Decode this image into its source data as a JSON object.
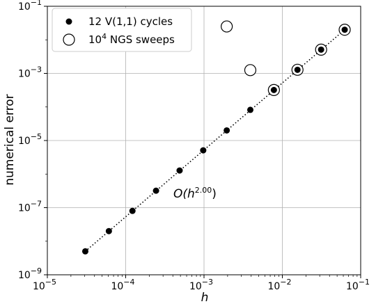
{
  "chart_data": {
    "type": "scatter",
    "xscale": "log",
    "yscale": "log",
    "xlim": [
      1e-05,
      0.1
    ],
    "ylim": [
      1e-09,
      0.1
    ],
    "grid": true,
    "xlabel": "h",
    "ylabel": "numerical error",
    "x_ticks": [
      {
        "base": "10",
        "exp": "−5"
      },
      {
        "base": "10",
        "exp": "−4"
      },
      {
        "base": "10",
        "exp": "−3"
      },
      {
        "base": "10",
        "exp": "−2"
      },
      {
        "base": "10",
        "exp": "−1"
      }
    ],
    "y_ticks": [
      {
        "base": "10",
        "exp": "−9"
      },
      {
        "base": "10",
        "exp": "−7"
      },
      {
        "base": "10",
        "exp": "−5"
      },
      {
        "base": "10",
        "exp": "−3"
      },
      {
        "base": "10",
        "exp": "−1"
      }
    ],
    "legend_position": "upper-left",
    "series": [
      {
        "name": "12 V(1,1) cycles",
        "marker": "filled-circle",
        "color": "#000000",
        "x": [
          3.05e-05,
          6.1e-05,
          0.000122,
          0.000244,
          0.000488,
          0.000977,
          0.00195,
          0.0039,
          0.0078,
          0.0156,
          0.03125,
          0.0625
        ],
        "y": [
          5e-09,
          2e-08,
          8e-08,
          3.2e-07,
          1.28e-06,
          5.1e-06,
          2e-05,
          8.2e-05,
          0.00032,
          0.00128,
          0.0051,
          0.02
        ]
      },
      {
        "name_base": "10",
        "name_exp": "4",
        "name_rest": " NGS sweeps",
        "marker": "open-circle",
        "color": "#000000",
        "x": [
          0.00195,
          0.0039,
          0.0078,
          0.0156,
          0.03125,
          0.0625
        ],
        "y": [
          0.025,
          0.00125,
          0.00032,
          0.00128,
          0.0051,
          0.02
        ]
      }
    ],
    "fit_line": {
      "style": "dotted",
      "from": [
        3.05e-05,
        5e-09
      ],
      "to": [
        0.0625,
        0.02
      ]
    },
    "annotation": {
      "prefix": "O(h",
      "exp": "2.00",
      "suffix": ")"
    }
  }
}
